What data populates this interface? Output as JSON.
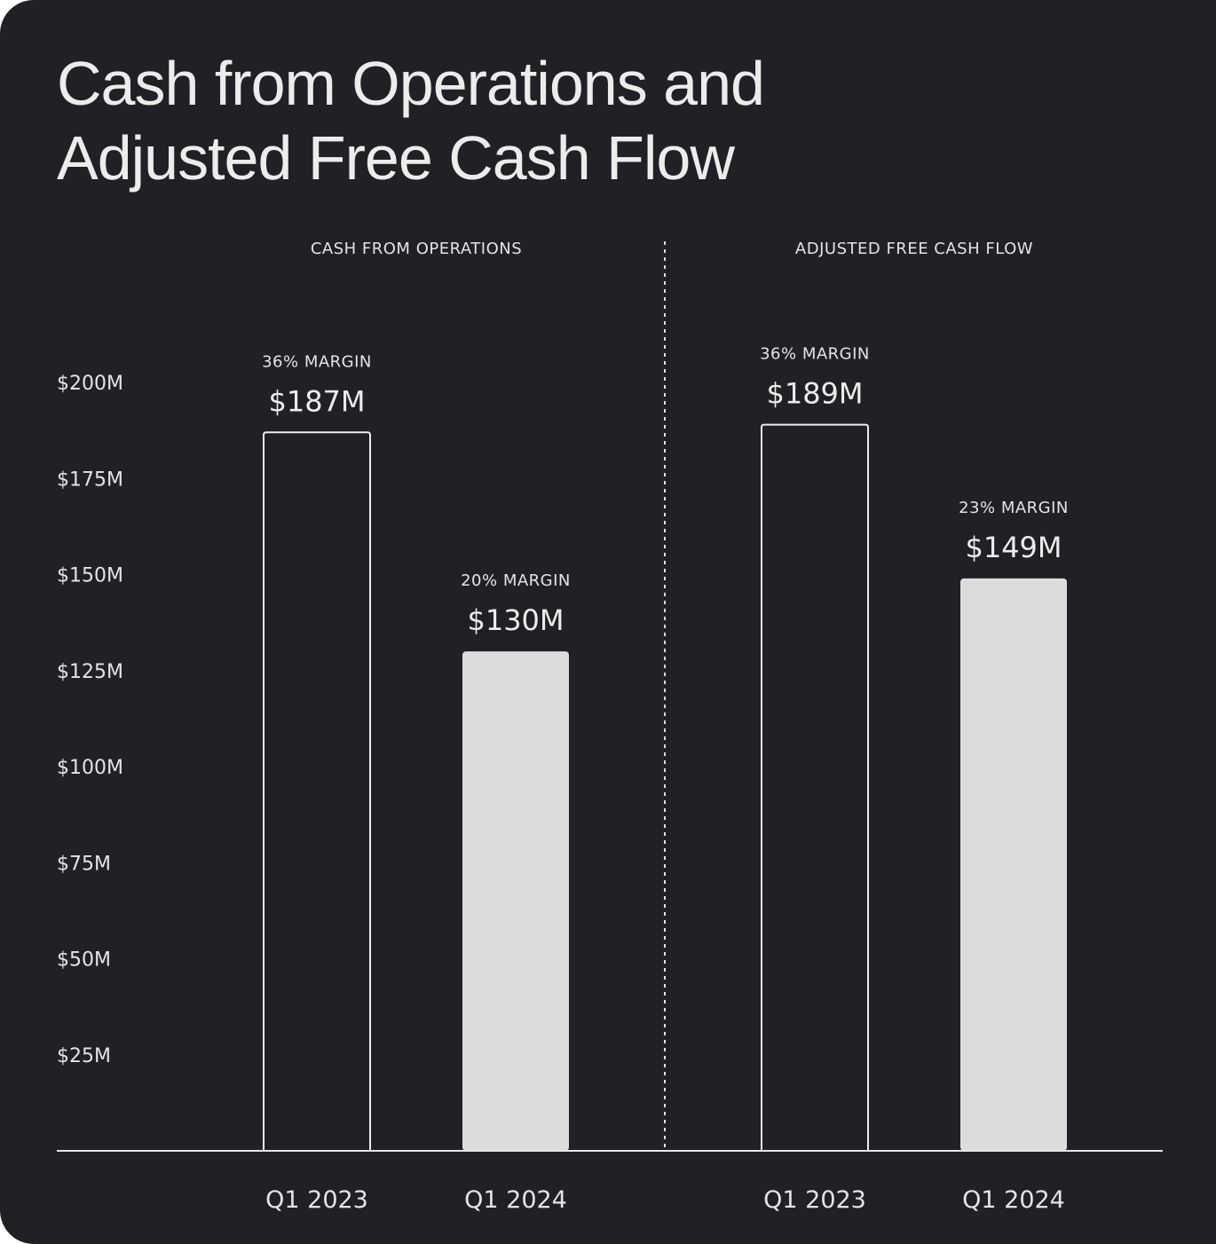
{
  "title_lines": [
    "Cash from Operations and",
    "Adjusted Free Cash Flow"
  ],
  "colors": {
    "background": "#1f2124",
    "text": "#e4e4e4",
    "filled_bar": "#dcdcdc",
    "outline_bar": "#ececec"
  },
  "chart_data": {
    "type": "bar",
    "ylim": [
      0,
      200
    ],
    "yticks": [
      25,
      50,
      75,
      100,
      125,
      150,
      175,
      200
    ],
    "ytick_labels": [
      "$25M",
      "$50M",
      "$75M",
      "$100M",
      "$125M",
      "$150M",
      "$175M",
      "$200M"
    ],
    "panels": [
      {
        "title": "CASH FROM OPERATIONS",
        "categories": [
          "Q1 2023",
          "Q1 2024"
        ],
        "values": [
          187,
          130
        ],
        "value_labels": [
          "$187M",
          "$130M"
        ],
        "margin_labels": [
          "36% MARGIN",
          "20% MARGIN"
        ],
        "styles": [
          "outline",
          "filled"
        ]
      },
      {
        "title": "ADJUSTED FREE CASH FLOW",
        "categories": [
          "Q1 2023",
          "Q1 2024"
        ],
        "values": [
          189,
          149
        ],
        "value_labels": [
          "$189M",
          "$149M"
        ],
        "margin_labels": [
          "36% MARGIN",
          "23% MARGIN"
        ],
        "styles": [
          "outline",
          "filled"
        ]
      }
    ]
  }
}
